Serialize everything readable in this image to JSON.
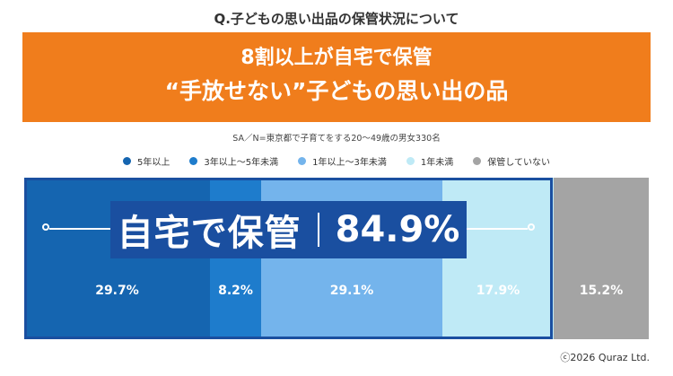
{
  "question": "Q.子どもの思い出品の保管状況について",
  "banner": {
    "line1": "8割以上が自宅で保管",
    "line2": "“手放せない”子どもの思い出の品"
  },
  "sample_note": "SA／N=東京都で子育てをする20～49歳の男女330名",
  "callout": {
    "label": "自宅で保管",
    "value": "84.9%"
  },
  "copyright": "ⓒ2026 Quraz Ltd.",
  "chart_data": {
    "type": "bar",
    "orientation": "horizontal-stacked-100",
    "title": "Q.子どもの思い出品の保管状況について",
    "series": [
      {
        "name": "5年以上",
        "value": 29.7,
        "label": "29.7%",
        "color": "#1565b0"
      },
      {
        "name": "3年以上～5年未満",
        "value": 8.2,
        "label": "8.2%",
        "color": "#1e7ccc"
      },
      {
        "name": "1年以上～3年未満",
        "value": 29.1,
        "label": "29.1%",
        "color": "#74b4ec"
      },
      {
        "name": "1年未満",
        "value": 17.9,
        "label": "17.9%",
        "color": "#bfeaf6"
      },
      {
        "name": "保管していない",
        "value": 15.2,
        "label": "15.2%",
        "color": "#a4a4a4"
      }
    ],
    "highlight": {
      "label": "自宅で保管",
      "value": 84.9
    },
    "legend_position": "top",
    "grid": false
  }
}
